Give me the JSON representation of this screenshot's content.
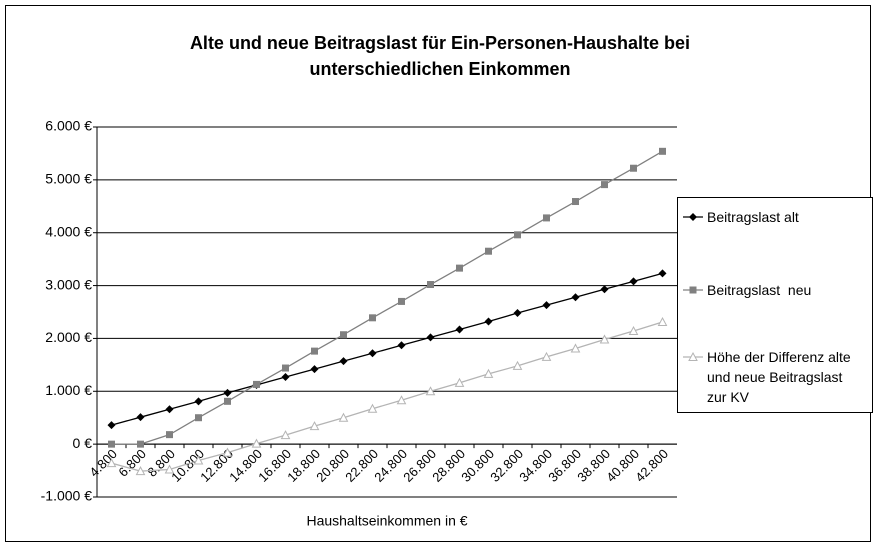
{
  "chart_data": {
    "type": "line",
    "title": "Alte und neue Beitragslast für Ein-Personen-Haushalte bei unterschiedlichen Einkommen",
    "x_label": "Haushaltseinkommen in €",
    "categories": [
      "4.800",
      "6.800",
      "8.800",
      "10.800",
      "12.800",
      "14.800",
      "16.800",
      "18.800",
      "20.800",
      "22.800",
      "24.800",
      "26.800",
      "28.800",
      "30.800",
      "32.800",
      "34.800",
      "36.800",
      "38.800",
      "40.800",
      "42.800"
    ],
    "series": [
      {
        "name": "Beitragslast alt",
        "color": "#000000",
        "marker": "diamond",
        "values": [
          360,
          510,
          660,
          810,
          970,
          1120,
          1270,
          1420,
          1570,
          1720,
          1870,
          2020,
          2170,
          2320,
          2480,
          2630,
          2780,
          2930,
          3080,
          3230
        ]
      },
      {
        "name": "Beitragslast  neu",
        "color": "#808080",
        "marker": "square",
        "values": [
          0,
          0,
          180,
          500,
          810,
          1130,
          1440,
          1760,
          2070,
          2390,
          2700,
          3020,
          3330,
          3650,
          3960,
          4280,
          4590,
          4910,
          5220,
          5540
        ]
      },
      {
        "name": "Höhe der Differenz alte und neue Beitragslast  zur KV",
        "color": "#b4b4b4",
        "marker": "triangle",
        "values": [
          -360,
          -510,
          -480,
          -310,
          -160,
          10,
          170,
          340,
          500,
          670,
          830,
          1000,
          1160,
          1330,
          1480,
          1650,
          1810,
          1980,
          2140,
          2310
        ]
      }
    ],
    "ylim": [
      -1000,
      6000
    ],
    "yticks": [
      {
        "value": -1000,
        "label": "-1.000 €"
      },
      {
        "value": 0,
        "label": "0 €"
      },
      {
        "value": 1000,
        "label": "1.000 €"
      },
      {
        "value": 2000,
        "label": "2.000 €"
      },
      {
        "value": 3000,
        "label": "3.000 €"
      },
      {
        "value": 4000,
        "label": "4.000 €"
      },
      {
        "value": 5000,
        "label": "5.000 €"
      },
      {
        "value": 6000,
        "label": "6.000 €"
      }
    ],
    "grid": true,
    "legend": "right"
  }
}
